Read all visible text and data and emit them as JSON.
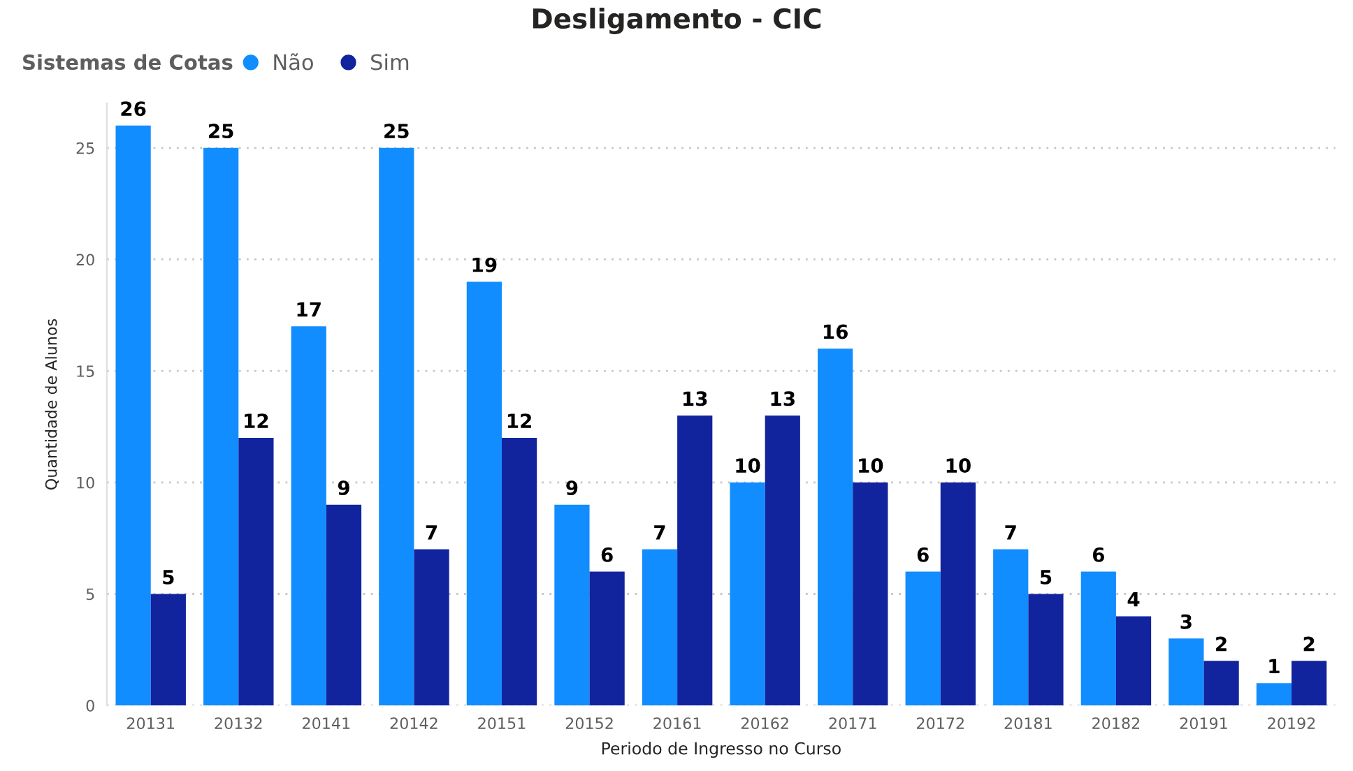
{
  "chart_data": {
    "type": "bar",
    "title": "Desligamento - CIC",
    "xlabel": "Periodo de Ingresso no Curso",
    "ylabel": "Quantidade de Alunos",
    "legend_title": "Sistemas de Cotas",
    "categories": [
      "20131",
      "20132",
      "20141",
      "20142",
      "20151",
      "20152",
      "20161",
      "20162",
      "20171",
      "20172",
      "20181",
      "20182",
      "20191",
      "20192"
    ],
    "series": [
      {
        "name": "Não",
        "color": "#118dff",
        "values": [
          26,
          25,
          17,
          25,
          19,
          9,
          7,
          10,
          16,
          6,
          7,
          6,
          3,
          1
        ]
      },
      {
        "name": "Sim",
        "color": "#12239e",
        "values": [
          5,
          12,
          9,
          7,
          12,
          6,
          13,
          13,
          10,
          10,
          5,
          4,
          2,
          2
        ]
      }
    ],
    "ylim": [
      0,
      27
    ],
    "yticks": [
      0,
      5,
      10,
      15,
      20,
      25
    ],
    "grid": "y",
    "legend": "top left",
    "data_labels": true
  }
}
